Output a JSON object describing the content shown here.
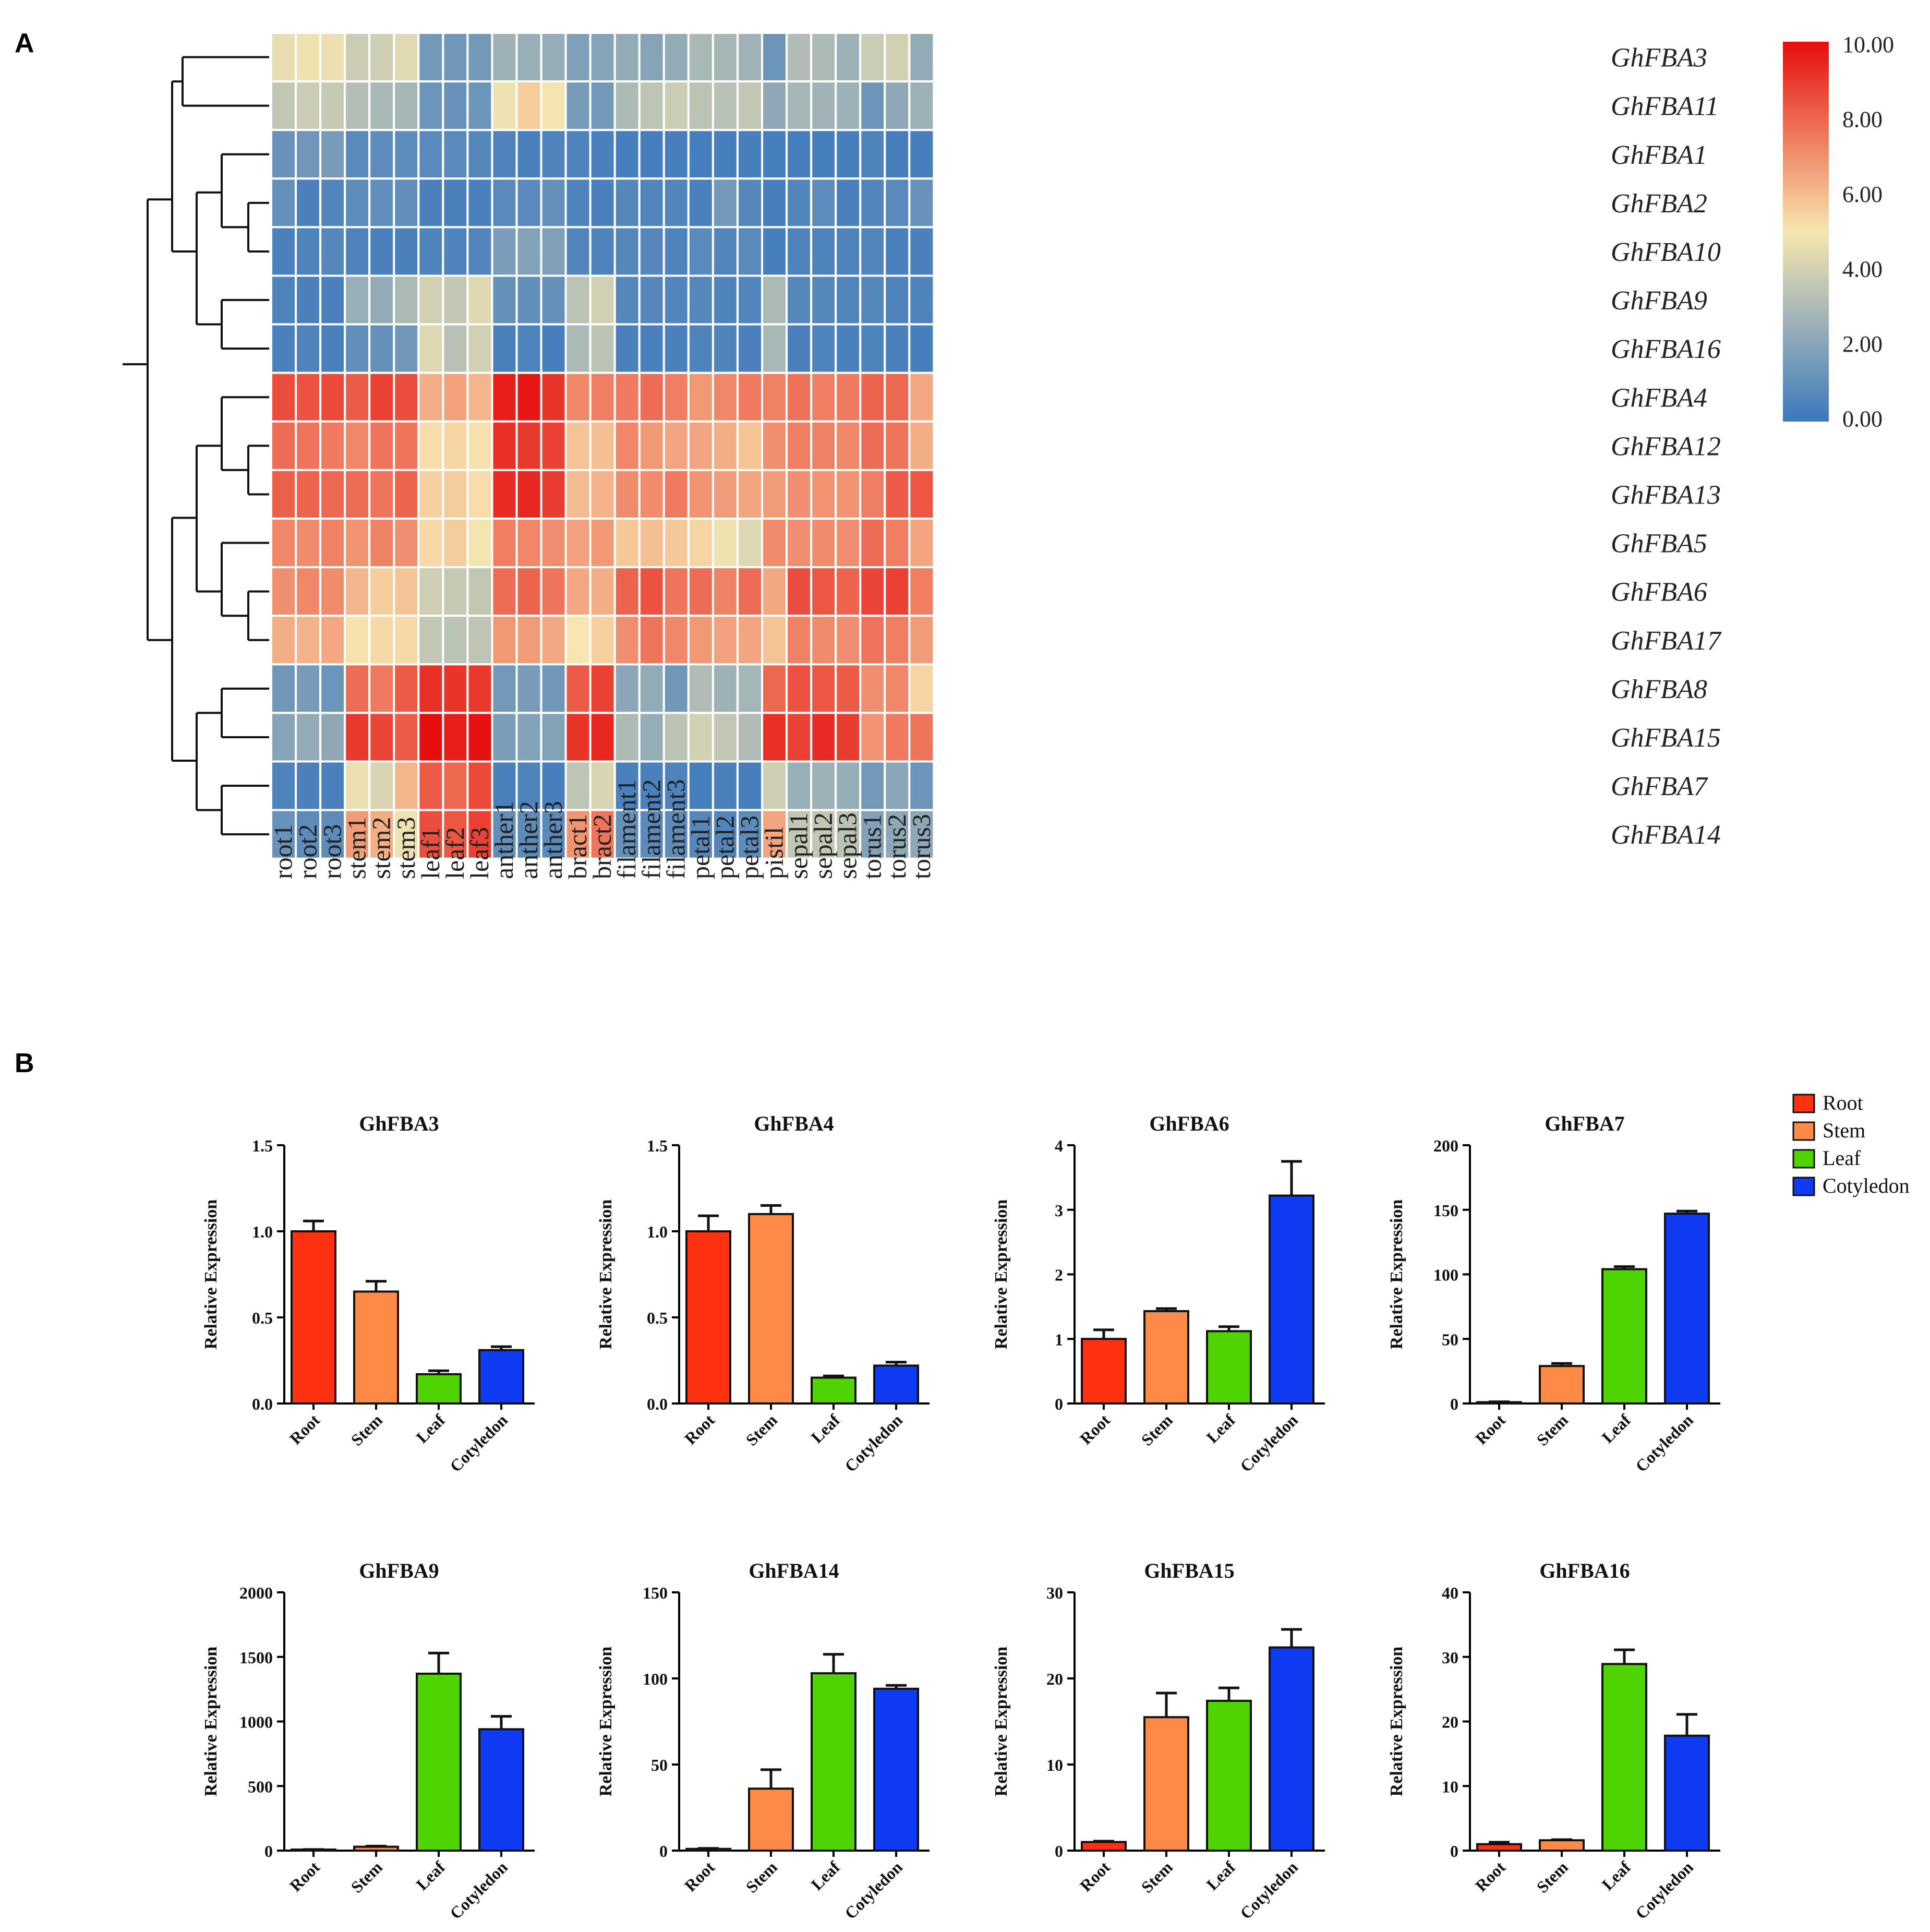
{
  "panel_labels": [
    "A",
    "B"
  ],
  "colors": {
    "scale_low": "#3b78bd",
    "scale_mid": "#f7e6b0",
    "scale_high": "#e60d0d",
    "bar_root": "#ff3111",
    "bar_stem": "#fd8a47",
    "bar_leaf": "#4ed400",
    "bar_cotyledon": "#0f3cf3",
    "grid_line": "#ffffff",
    "axis": "#000000"
  },
  "chart_data": [
    {
      "type": "heatmap",
      "title": "",
      "colorbar": {
        "min": 0,
        "max": 10,
        "ticks": [
          "10.00",
          "8.00",
          "6.00",
          "4.00",
          "2.00",
          "0.00"
        ]
      },
      "columns": [
        "root1",
        "root2",
        "root3",
        "stem1",
        "stem2",
        "stem3",
        "leaf1",
        "leaf2",
        "leaf3",
        "anther1",
        "anther2",
        "anther3",
        "bract1",
        "bract2",
        "filament1",
        "filament2",
        "filament3",
        "petal1",
        "petal2",
        "petal3",
        "pistil",
        "sepal1",
        "sepal2",
        "sepal3",
        "torus1",
        "torus2",
        "torus3"
      ],
      "rows": [
        "GhFBA3",
        "GhFBA11",
        "GhFBA1",
        "GhFBA2",
        "GhFBA10",
        "GhFBA9",
        "GhFBA16",
        "GhFBA4",
        "GhFBA12",
        "GhFBA13",
        "GhFBA5",
        "GhFBA6",
        "GhFBA17",
        "GhFBA8",
        "GhFBA15",
        "GhFBA7",
        "GhFBA14"
      ],
      "values": [
        [
          4.6,
          4.8,
          4.7,
          3.8,
          3.9,
          4.4,
          1.5,
          1.4,
          1.5,
          2.6,
          2.5,
          2.4,
          1.8,
          2.0,
          2.3,
          2.0,
          2.3,
          2.9,
          2.8,
          2.7,
          1.3,
          3.1,
          3.0,
          2.6,
          3.8,
          4.0,
          2.3
        ],
        [
          3.6,
          3.8,
          3.7,
          3.2,
          2.9,
          2.8,
          1.3,
          1.2,
          1.3,
          4.8,
          5.6,
          4.9,
          1.6,
          1.5,
          3.0,
          3.5,
          3.8,
          3.4,
          3.3,
          3.6,
          2.2,
          2.8,
          2.7,
          2.6,
          1.3,
          2.2,
          2.6
        ],
        [
          1.2,
          1.4,
          1.6,
          0.8,
          0.9,
          0.9,
          0.8,
          0.8,
          0.7,
          0.5,
          0.4,
          0.5,
          0.5,
          0.4,
          0.3,
          0.3,
          0.3,
          0.3,
          0.3,
          0.3,
          0.3,
          0.3,
          0.3,
          0.3,
          0.5,
          0.3,
          0.3
        ],
        [
          1.1,
          0.4,
          0.6,
          0.9,
          1.0,
          1.0,
          0.4,
          0.4,
          0.4,
          0.8,
          0.8,
          1.1,
          0.5,
          0.4,
          0.7,
          0.6,
          0.6,
          0.4,
          1.5,
          0.7,
          0.3,
          0.6,
          0.9,
          0.4,
          0.6,
          0.8,
          1.2
        ],
        [
          0.4,
          0.5,
          0.7,
          0.5,
          0.4,
          0.4,
          0.5,
          0.5,
          0.6,
          1.7,
          1.9,
          1.8,
          0.6,
          0.5,
          0.7,
          0.7,
          0.5,
          0.8,
          0.6,
          0.8,
          0.3,
          0.5,
          0.5,
          0.5,
          0.6,
          0.4,
          0.4
        ],
        [
          0.5,
          0.4,
          0.4,
          2.5,
          2.3,
          3.0,
          4.0,
          3.6,
          4.3,
          1.1,
          1.0,
          1.1,
          3.4,
          4.0,
          0.7,
          0.7,
          0.6,
          0.7,
          0.5,
          0.6,
          3.0,
          0.7,
          0.7,
          0.6,
          0.7,
          0.5,
          0.5
        ],
        [
          0.4,
          0.5,
          0.4,
          1.0,
          1.1,
          1.4,
          4.3,
          3.3,
          4.0,
          0.4,
          0.5,
          0.3,
          3.0,
          3.4,
          0.4,
          0.4,
          0.4,
          0.5,
          0.5,
          0.4,
          2.9,
          0.4,
          0.5,
          0.4,
          0.5,
          0.4,
          0.3
        ],
        [
          8.5,
          8.4,
          8.6,
          8.2,
          8.8,
          8.5,
          6.3,
          6.6,
          6.1,
          9.6,
          9.8,
          9.1,
          7.2,
          7.4,
          7.5,
          7.8,
          7.4,
          6.8,
          7.2,
          7.5,
          7.3,
          7.7,
          7.4,
          7.5,
          8.0,
          7.9,
          6.4
        ],
        [
          7.8,
          7.6,
          7.5,
          7.2,
          7.6,
          7.6,
          5.2,
          5.4,
          5.1,
          9.2,
          9.0,
          8.8,
          5.8,
          5.9,
          7.2,
          6.8,
          6.5,
          6.5,
          6.3,
          5.8,
          7.0,
          7.4,
          7.3,
          7.2,
          7.8,
          7.6,
          6.3
        ],
        [
          8.1,
          8.0,
          7.9,
          7.8,
          7.6,
          8.0,
          5.5,
          5.6,
          5.2,
          9.3,
          9.4,
          8.9,
          6.0,
          6.2,
          7.1,
          7.1,
          7.5,
          6.9,
          6.7,
          6.5,
          6.7,
          7.0,
          6.9,
          6.9,
          7.4,
          8.2,
          8.3
        ],
        [
          7.2,
          7.1,
          7.3,
          6.9,
          7.3,
          7.0,
          5.3,
          5.6,
          4.9,
          7.4,
          7.2,
          7.0,
          6.6,
          6.8,
          5.7,
          5.9,
          5.7,
          5.4,
          4.8,
          4.3,
          7.1,
          7.0,
          7.1,
          7.0,
          7.8,
          7.4,
          6.5
        ],
        [
          7.0,
          7.2,
          7.1,
          6.1,
          5.6,
          5.8,
          3.9,
          3.7,
          3.6,
          7.8,
          8.0,
          7.6,
          6.4,
          6.3,
          8.0,
          8.4,
          7.6,
          7.8,
          7.3,
          7.8,
          6.4,
          8.5,
          8.3,
          8.0,
          8.7,
          8.8,
          7.4
        ],
        [
          6.3,
          6.2,
          6.4,
          5.1,
          5.3,
          5.3,
          3.6,
          3.4,
          3.5,
          6.8,
          6.7,
          6.4,
          5.0,
          5.5,
          7.0,
          7.6,
          7.2,
          6.8,
          6.6,
          6.5,
          5.8,
          7.3,
          7.1,
          7.0,
          7.6,
          7.4,
          6.7
        ],
        [
          1.4,
          1.6,
          1.3,
          7.8,
          7.5,
          8.2,
          9.2,
          9.1,
          9.0,
          1.5,
          1.6,
          1.4,
          8.2,
          8.8,
          2.1,
          2.3,
          1.4,
          3.1,
          2.6,
          2.8,
          7.9,
          8.4,
          8.3,
          8.2,
          7.0,
          7.2,
          5.4
        ],
        [
          2.0,
          2.3,
          2.2,
          9.0,
          8.7,
          8.2,
          10.0,
          9.6,
          9.9,
          1.7,
          1.9,
          1.9,
          9.1,
          9.4,
          3.0,
          2.4,
          3.4,
          4.0,
          3.6,
          3.1,
          9.2,
          8.8,
          9.3,
          8.9,
          6.9,
          7.5,
          7.6
        ],
        [
          0.5,
          0.4,
          0.4,
          4.7,
          4.2,
          6.1,
          8.2,
          7.9,
          8.6,
          0.4,
          0.5,
          0.3,
          3.5,
          4.2,
          0.4,
          0.4,
          0.5,
          0.3,
          0.4,
          0.3,
          3.9,
          2.5,
          2.6,
          2.4,
          1.5,
          2.1,
          1.3
        ],
        [
          1.2,
          0.9,
          0.9,
          6.7,
          6.3,
          4.8,
          8.5,
          8.3,
          8.8,
          1.0,
          0.9,
          0.8,
          6.9,
          7.6,
          1.1,
          0.8,
          0.9,
          0.7,
          0.6,
          0.9,
          6.5,
          3.6,
          3.6,
          3.4,
          1.9,
          2.2,
          2.2
        ]
      ],
      "dendrogram": "rows clustered; tree drawn on left"
    },
    {
      "type": "bar",
      "group": "B",
      "legend": [
        "Root",
        "Stem",
        "Leaf",
        "Cotyledon"
      ],
      "legend_position": "top-right",
      "categories": [
        "Root",
        "Stem",
        "Leaf",
        "Cotyledon"
      ],
      "ylabel": "Relative Expression",
      "panels": [
        {
          "title": "GhFBA3",
          "ylim": [
            0,
            1.5
          ],
          "ticks": [
            "0.0",
            "0.5",
            "1.0",
            "1.5"
          ],
          "values": [
            1.0,
            0.65,
            0.17,
            0.31
          ],
          "errors": [
            0.06,
            0.06,
            0.02,
            0.02
          ]
        },
        {
          "title": "GhFBA4",
          "ylim": [
            0,
            1.5
          ],
          "ticks": [
            "0.0",
            "0.5",
            "1.0",
            "1.5"
          ],
          "values": [
            1.0,
            1.1,
            0.15,
            0.22
          ],
          "errors": [
            0.09,
            0.05,
            0.01,
            0.02
          ]
        },
        {
          "title": "GhFBA6",
          "ylim": [
            0,
            4
          ],
          "ticks": [
            "0",
            "1",
            "2",
            "3",
            "4"
          ],
          "values": [
            1.0,
            1.43,
            1.12,
            3.22
          ],
          "errors": [
            0.14,
            0.04,
            0.07,
            0.53
          ]
        },
        {
          "title": "GhFBA7",
          "ylim": [
            0,
            200
          ],
          "ticks": [
            "0",
            "50",
            "100",
            "150",
            "200"
          ],
          "values": [
            1.0,
            29,
            104,
            147
          ],
          "errors": [
            0.3,
            2,
            2,
            2
          ]
        },
        {
          "title": "GhFBA9",
          "ylim": [
            0,
            2000
          ],
          "ticks": [
            "0",
            "500",
            "1000",
            "1500",
            "2000"
          ],
          "values": [
            1.0,
            30,
            1370,
            940
          ],
          "errors": [
            0.5,
            5,
            160,
            100
          ]
        },
        {
          "title": "GhFBA14",
          "ylim": [
            0,
            150
          ],
          "ticks": [
            "0",
            "50",
            "100",
            "150"
          ],
          "values": [
            1.0,
            36,
            103,
            94
          ],
          "errors": [
            0.3,
            11,
            11,
            2
          ]
        },
        {
          "title": "GhFBA15",
          "ylim": [
            0,
            30
          ],
          "ticks": [
            "0",
            "10",
            "20",
            "30"
          ],
          "values": [
            1.0,
            15.5,
            17.4,
            23.6
          ],
          "errors": [
            0.1,
            2.8,
            1.5,
            2.1
          ]
        },
        {
          "title": "GhFBA16",
          "ylim": [
            0,
            40
          ],
          "ticks": [
            "0",
            "10",
            "20",
            "30",
            "40"
          ],
          "values": [
            1.0,
            1.6,
            28.9,
            17.8
          ],
          "errors": [
            0.3,
            0.1,
            2.2,
            3.3
          ]
        }
      ]
    }
  ]
}
